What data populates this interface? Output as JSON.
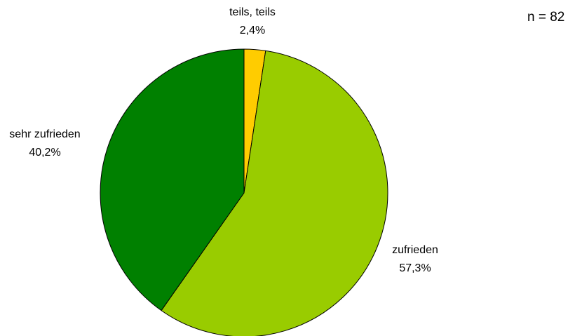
{
  "chart_data": {
    "type": "pie",
    "slices": [
      {
        "label": "teils, teils",
        "value": 2.4,
        "value_label": "2,4%",
        "color": "#ffcc00"
      },
      {
        "label": "zufrieden",
        "value": 57.3,
        "value_label": "57,3%",
        "color": "#99cc00"
      },
      {
        "label": "sehr zufrieden",
        "value": 40.2,
        "value_label": "40,2%",
        "color": "#008000"
      }
    ],
    "start_angle": "top",
    "direction": "clockwise",
    "legend": "none",
    "annotation": "n = 82"
  }
}
